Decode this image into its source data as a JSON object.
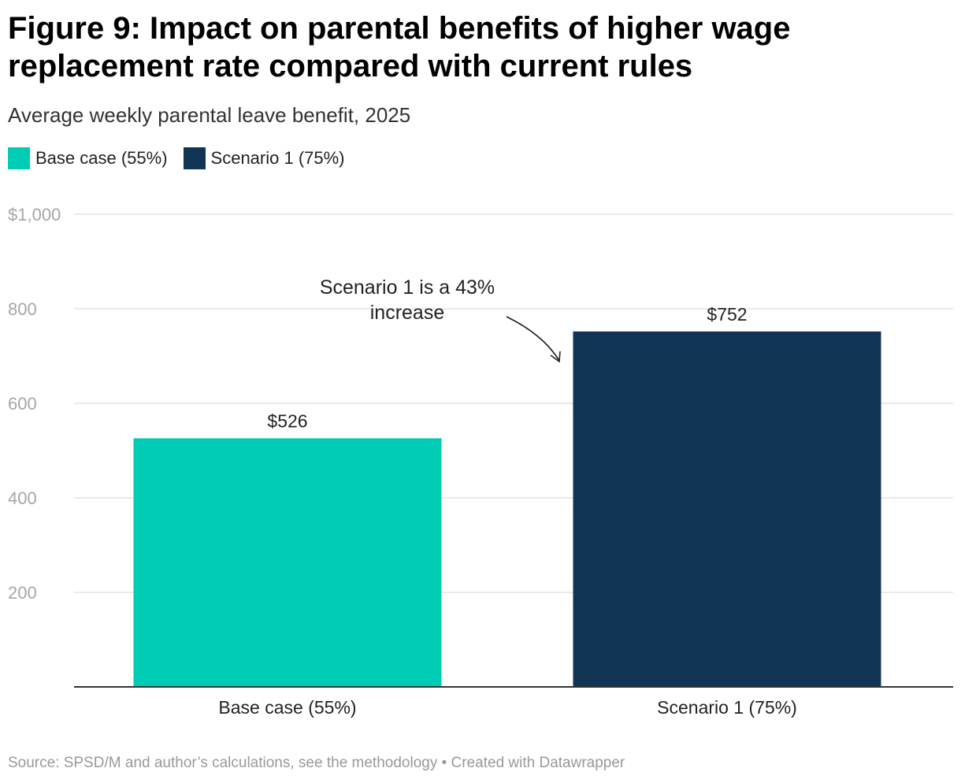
{
  "title": "Figure 9: Impact on parental benefits of higher wage replacement rate compared with current rules",
  "subtitle": "Average weekly parental leave benefit, 2025",
  "legend": [
    {
      "label": "Base case (55%)",
      "color": "#00CCB5"
    },
    {
      "label": "Scenario 1 (75%)",
      "color": "#113354"
    }
  ],
  "annotation": {
    "line1": "Scenario 1 is a 43%",
    "line2": "increase"
  },
  "footer": "Source: SPSD/M and author’s calculations, see the methodology • Created with Datawrapper",
  "chart_data": {
    "type": "bar",
    "title": "Figure 9: Impact on parental benefits of higher wage replacement rate compared with current rules",
    "subtitle": "Average weekly parental leave benefit, 2025",
    "categories": [
      "Base case (55%)",
      "Scenario 1 (75%)"
    ],
    "values": [
      526,
      752
    ],
    "value_labels": [
      "$526",
      "$752"
    ],
    "colors": [
      "#00CCB5",
      "#113354"
    ],
    "ylim": [
      0,
      1000
    ],
    "yticks": [
      200,
      400,
      600,
      800,
      1000
    ],
    "ytick_labels": [
      "200",
      "400",
      "600",
      "800",
      "$1,000"
    ],
    "xlabel": "",
    "ylabel": "",
    "grid": true,
    "legend_position": "top-left"
  }
}
